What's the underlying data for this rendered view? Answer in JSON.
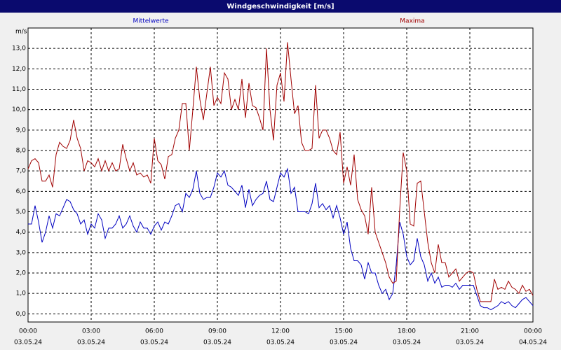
{
  "chart_data": {
    "type": "line",
    "title": "Windgeschwindigkeit [m/s]",
    "y_label": "m/s",
    "x": [
      0,
      10,
      20,
      30,
      40,
      50,
      60,
      70,
      80,
      90,
      100,
      110,
      120,
      130,
      140,
      150,
      160,
      170,
      180,
      190,
      200,
      210,
      220,
      230,
      240,
      250,
      260,
      270,
      280,
      290,
      300,
      310,
      320,
      330,
      340,
      350,
      360,
      370,
      380,
      390,
      400,
      410,
      420,
      430,
      440,
      450,
      460,
      470,
      480,
      490,
      500,
      510,
      520,
      530,
      540,
      550,
      560,
      570,
      580,
      590,
      600,
      610,
      620,
      630,
      640,
      650,
      660,
      670,
      680,
      690,
      700,
      710,
      720,
      730,
      740,
      750,
      760,
      770,
      780,
      790,
      800,
      810,
      820,
      830,
      840,
      850,
      860,
      870,
      880,
      890,
      900,
      910,
      920,
      930,
      940,
      950,
      960,
      970,
      980,
      990,
      1000,
      1010,
      1020,
      1030,
      1040,
      1050,
      1060,
      1070,
      1080,
      1090,
      1100,
      1110,
      1120,
      1130,
      1140,
      1150,
      1160,
      1170,
      1180,
      1190,
      1200,
      1210,
      1220,
      1230,
      1240,
      1250,
      1260,
      1270,
      1280,
      1290,
      1300,
      1310,
      1320,
      1330,
      1340,
      1350,
      1360,
      1370,
      1380,
      1390,
      1400,
      1410,
      1420,
      1430,
      1440
    ],
    "series": [
      {
        "name": "Mittelwerte",
        "color": "#0000c0",
        "values": [
          4.4,
          4.4,
          5.3,
          4.5,
          3.5,
          4.0,
          4.8,
          4.2,
          4.9,
          4.8,
          5.2,
          5.6,
          5.5,
          5.1,
          4.9,
          4.4,
          4.6,
          3.9,
          4.4,
          4.2,
          4.9,
          4.6,
          3.7,
          4.2,
          4.2,
          4.4,
          4.8,
          4.2,
          4.4,
          4.8,
          4.3,
          4.0,
          4.5,
          4.2,
          4.2,
          3.9,
          4.3,
          4.5,
          4.1,
          4.5,
          4.4,
          4.8,
          5.3,
          5.4,
          5.0,
          5.9,
          5.7,
          6.1,
          7.0,
          5.9,
          5.6,
          5.7,
          5.7,
          6.2,
          6.9,
          6.7,
          7.0,
          6.3,
          6.2,
          6.0,
          5.8,
          6.3,
          5.2,
          6.1,
          5.3,
          5.6,
          5.8,
          5.9,
          6.5,
          5.6,
          5.5,
          6.2,
          6.9,
          6.7,
          7.1,
          5.9,
          6.2,
          5.0,
          5.0,
          5.0,
          4.9,
          5.4,
          6.4,
          5.2,
          5.4,
          5.1,
          5.3,
          4.7,
          5.3,
          4.7,
          3.9,
          4.5,
          3.2,
          2.6,
          2.6,
          2.4,
          1.7,
          2.5,
          2.0,
          2.0,
          1.4,
          1.0,
          1.2,
          0.7,
          1.0,
          2.4,
          4.5,
          3.9,
          2.8,
          2.4,
          2.6,
          3.7,
          2.8,
          2.4,
          1.6,
          2.0,
          1.5,
          1.8,
          1.3,
          1.4,
          1.4,
          1.3,
          1.5,
          1.2,
          1.4,
          1.4,
          1.4,
          1.4,
          0.9,
          0.4,
          0.3,
          0.3,
          0.2,
          0.3,
          0.4,
          0.6,
          0.5,
          0.6,
          0.4,
          0.3,
          0.5,
          0.7,
          0.8,
          0.6,
          0.4
        ]
      },
      {
        "name": "Maxima",
        "color": "#a00000",
        "values": [
          7.1,
          7.5,
          7.6,
          7.4,
          6.5,
          6.5,
          6.8,
          6.2,
          7.8,
          8.4,
          8.2,
          8.1,
          8.5,
          9.5,
          8.6,
          8.1,
          7.0,
          7.5,
          7.4,
          7.2,
          7.6,
          7.0,
          7.5,
          7.0,
          7.4,
          7.0,
          7.1,
          8.3,
          7.6,
          7.0,
          7.4,
          6.8,
          6.9,
          6.7,
          6.8,
          6.4,
          8.6,
          7.5,
          7.3,
          6.6,
          7.7,
          7.8,
          8.6,
          9.0,
          10.3,
          10.3,
          8.0,
          10.0,
          12.1,
          10.5,
          9.5,
          10.8,
          12.1,
          10.2,
          10.6,
          10.3,
          11.8,
          11.5,
          10.0,
          10.5,
          10.0,
          11.5,
          9.6,
          11.3,
          10.2,
          10.1,
          9.6,
          9.0,
          13.0,
          10.0,
          8.5,
          11.2,
          11.8,
          10.4,
          13.3,
          11.5,
          9.8,
          10.2,
          8.4,
          8.0,
          8.0,
          8.1,
          11.2,
          8.6,
          9.0,
          9.0,
          8.6,
          8.0,
          7.8,
          8.9,
          6.4,
          7.2,
          6.3,
          7.8,
          5.6,
          5.1,
          4.8,
          3.9,
          6.2,
          4.0,
          3.5,
          3.0,
          2.5,
          1.8,
          1.5,
          1.6,
          5.1,
          7.9,
          7.0,
          4.4,
          4.3,
          6.4,
          6.5,
          5.0,
          3.5,
          2.5,
          2.0,
          3.4,
          2.5,
          2.5,
          1.8,
          2.0,
          2.2,
          1.6,
          1.8,
          2.0,
          2.1,
          2.0,
          1.2,
          0.6,
          0.6,
          0.6,
          0.6,
          1.7,
          1.2,
          1.3,
          1.2,
          1.6,
          1.3,
          1.2,
          1.0,
          1.4,
          1.1,
          1.2,
          0.9
        ]
      }
    ],
    "xlim": [
      0,
      1440
    ],
    "xticks": [
      {
        "value": 0,
        "label": "00:00"
      },
      {
        "value": 180,
        "label": "03:00"
      },
      {
        "value": 360,
        "label": "06:00"
      },
      {
        "value": 540,
        "label": "09:00"
      },
      {
        "value": 720,
        "label": "12:00"
      },
      {
        "value": 900,
        "label": "15:00"
      },
      {
        "value": 1080,
        "label": "18:00"
      },
      {
        "value": 1260,
        "label": "21:00"
      },
      {
        "value": 1440,
        "label": "00:00"
      }
    ],
    "xtick_dates": [
      "03.05.24",
      "03.05.24",
      "03.05.24",
      "03.05.24",
      "03.05.24",
      "03.05.24",
      "03.05.24",
      "03.05.24",
      "04.05.24"
    ],
    "ylim": [
      -0.4,
      14.0
    ],
    "yticks": [
      {
        "value": 0,
        "label": "0,0"
      },
      {
        "value": 1,
        "label": "1,0"
      },
      {
        "value": 2,
        "label": "2,0"
      },
      {
        "value": 3,
        "label": "3,0"
      },
      {
        "value": 4,
        "label": "4,0"
      },
      {
        "value": 5,
        "label": "5,0"
      },
      {
        "value": 6,
        "label": "6,0"
      },
      {
        "value": 7,
        "label": "7,0"
      },
      {
        "value": 8,
        "label": "8,0"
      },
      {
        "value": 9,
        "label": "9,0"
      },
      {
        "value": 10,
        "label": "10,0"
      },
      {
        "value": 11,
        "label": "11,0"
      },
      {
        "value": 12,
        "label": "12,0"
      },
      {
        "value": 13,
        "label": "13,0"
      }
    ],
    "grid": true
  }
}
